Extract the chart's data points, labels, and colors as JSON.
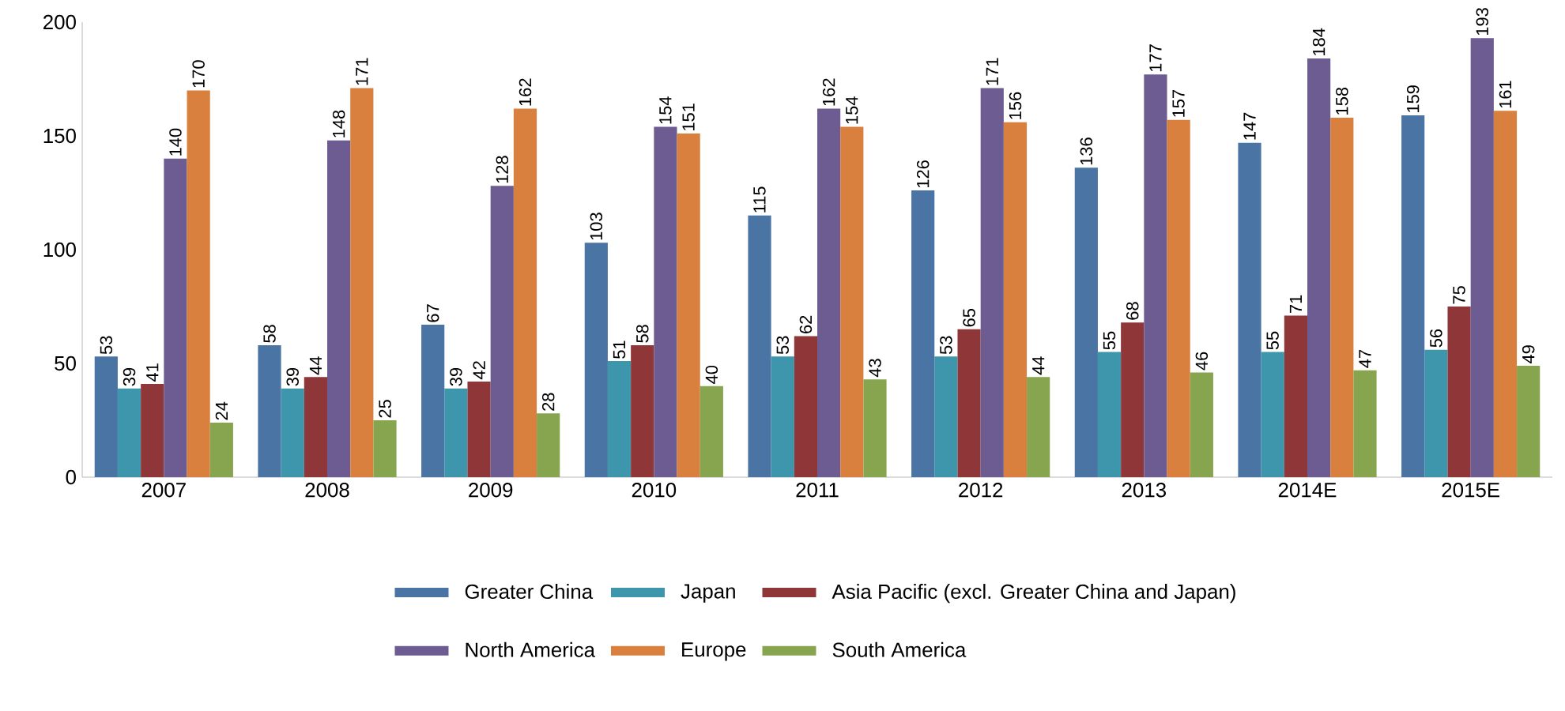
{
  "chart_data": {
    "type": "bar",
    "categories": [
      "2007",
      "2008",
      "2009",
      "2010",
      "2011",
      "2012",
      "2013",
      "2014E",
      "2015E"
    ],
    "series": [
      {
        "name": "Greater China",
        "color": "#4a74a4",
        "values": [
          53,
          58,
          67,
          103,
          115,
          126,
          136,
          147,
          159
        ]
      },
      {
        "name": "Japan",
        "color": "#3e96ac",
        "values": [
          39,
          39,
          39,
          51,
          53,
          53,
          55,
          55,
          56
        ]
      },
      {
        "name": "Asia Pacific (excl. Greater China and Japan)",
        "color": "#8e3638",
        "values": [
          41,
          44,
          42,
          58,
          62,
          65,
          68,
          71,
          75
        ]
      },
      {
        "name": "North America",
        "color": "#6d5c92",
        "values": [
          140,
          148,
          128,
          154,
          162,
          171,
          177,
          184,
          193
        ]
      },
      {
        "name": "Europe",
        "color": "#d9803f",
        "values": [
          170,
          171,
          162,
          151,
          154,
          156,
          157,
          158,
          161
        ]
      },
      {
        "name": "South America",
        "color": "#87a54f",
        "values": [
          24,
          25,
          28,
          40,
          43,
          44,
          46,
          47,
          49
        ]
      }
    ],
    "ylim": [
      0,
      200
    ],
    "yticks": [
      0,
      50,
      100,
      150,
      200
    ],
    "data_labels": true,
    "legend": "bottom",
    "grid": false
  }
}
